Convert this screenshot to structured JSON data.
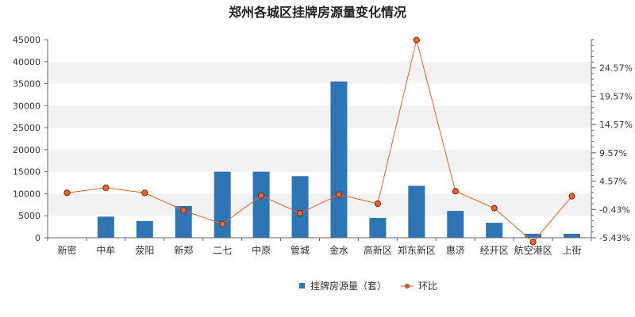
{
  "chart_data": {
    "type": "bar",
    "title": "郑州各城区挂牌房源量变化情况",
    "categories": [
      "新密",
      "中牟",
      "荥阳",
      "新郑",
      "二七",
      "中原",
      "管城",
      "金水",
      "高新区",
      "郑东新区",
      "惠济",
      "经开区",
      "航空港区",
      "上街"
    ],
    "series": [
      {
        "name": "挂牌房源量（套）",
        "type": "bar",
        "axis": "left",
        "color": "#2e75b6",
        "values": [
          0,
          4800,
          3800,
          7200,
          15000,
          15000,
          14000,
          35500,
          4500,
          11800,
          6100,
          3400,
          900,
          900
        ]
      },
      {
        "name": "环比",
        "type": "line",
        "axis": "right",
        "color": "#f0622a",
        "values": [
          2.5,
          3.4,
          2.5,
          -0.6,
          -3.0,
          2.0,
          -1.1,
          2.2,
          0.6,
          29.5,
          2.8,
          -0.2,
          -6.2,
          1.9
        ]
      }
    ],
    "y_left": {
      "min": 0,
      "max": 45000,
      "ticks": [
        0,
        5000,
        10000,
        15000,
        20000,
        25000,
        30000,
        35000,
        40000,
        45000
      ],
      "tick_labels": [
        "0",
        "5000",
        "10000",
        "15000",
        "20000",
        "25000",
        "30000",
        "35000",
        "40000",
        "45000"
      ]
    },
    "y_right": {
      "min": -5.43,
      "max": 29.57,
      "ticks": [
        -5.43,
        -0.43,
        4.57,
        9.57,
        14.57,
        19.57,
        24.57
      ],
      "tick_labels": [
        "-5.43%",
        "-0.43%",
        "4.57%",
        "9.57%",
        "14.57%",
        "19.57%",
        "24.57%"
      ]
    },
    "grid": "horizontal-alternating-bands",
    "legend_position": "bottom"
  }
}
